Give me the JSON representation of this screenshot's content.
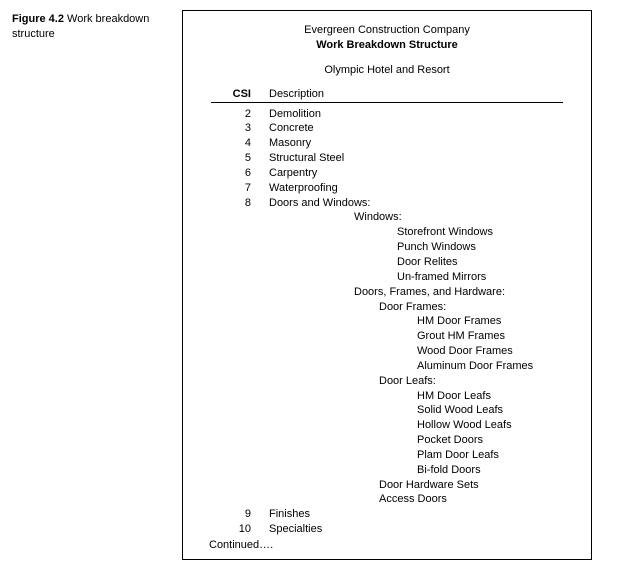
{
  "caption": {
    "label": "Figure 4.2",
    "text": "Work breakdown structure"
  },
  "header": {
    "company": "Evergreen Construction Company",
    "title": "Work Breakdown Structure",
    "project": "Olympic Hotel and Resort"
  },
  "columns": {
    "csi": "CSI",
    "desc": "Description"
  },
  "items": {
    "r0": {
      "csi": "2",
      "desc": "Demolition"
    },
    "r1": {
      "csi": "3",
      "desc": "Concrete"
    },
    "r2": {
      "csi": "4",
      "desc": "Masonry"
    },
    "r3": {
      "csi": "5",
      "desc": "Structural Steel"
    },
    "r4": {
      "csi": "6",
      "desc": "Carpentry"
    },
    "r5": {
      "csi": "7",
      "desc": "Waterproofing"
    },
    "r6": {
      "csi": "8",
      "desc": "Doors and Windows:"
    },
    "r7": {
      "desc": "Windows:"
    },
    "r8": {
      "desc": "Storefront Windows"
    },
    "r9": {
      "desc": "Punch Windows"
    },
    "r10": {
      "desc": "Door Relites"
    },
    "r11": {
      "desc": "Un-framed Mirrors"
    },
    "r12": {
      "desc": "Doors, Frames, and Hardware:"
    },
    "r13": {
      "desc": "Door Frames:"
    },
    "r14": {
      "desc": "HM Door Frames"
    },
    "r15": {
      "desc": "Grout HM Frames"
    },
    "r16": {
      "desc": "Wood Door Frames"
    },
    "r17": {
      "desc": "Aluminum Door Frames"
    },
    "r18": {
      "desc": "Door Leafs:"
    },
    "r19": {
      "desc": "HM Door Leafs"
    },
    "r20": {
      "desc": "Solid Wood Leafs"
    },
    "r21": {
      "desc": "Hollow Wood Leafs"
    },
    "r22": {
      "desc": "Pocket Doors"
    },
    "r23": {
      "desc": "Plam Door Leafs"
    },
    "r24": {
      "desc": "Bi-fold Doors"
    },
    "r25": {
      "desc": "Door Hardware Sets"
    },
    "r26": {
      "desc": "Access Doors"
    },
    "r27": {
      "csi": "9",
      "desc": "Finishes"
    },
    "r28": {
      "csi": "10",
      "desc": "Specialties"
    }
  },
  "continued": "Continued…."
}
